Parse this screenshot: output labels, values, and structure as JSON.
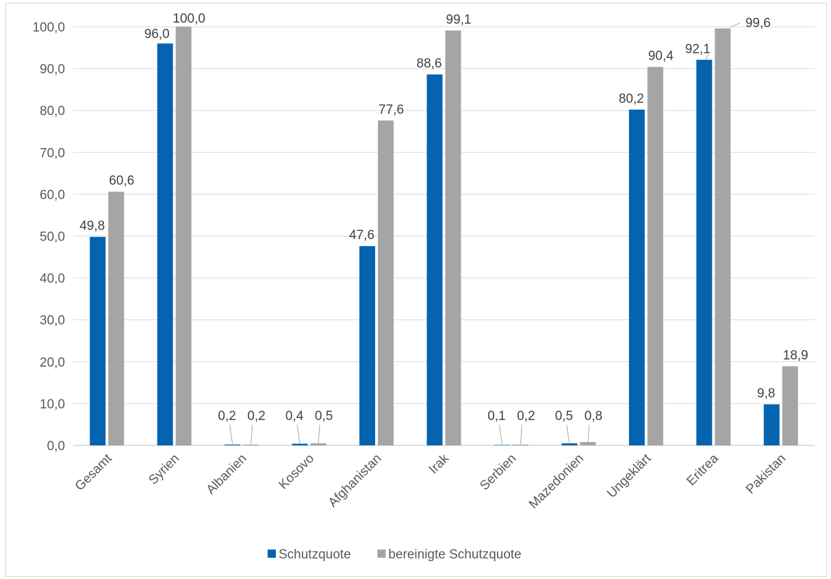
{
  "chart_data": {
    "type": "bar",
    "categories": [
      "Gesamt",
      "Syrien",
      "Albanien",
      "Kosovo",
      "Afghanistan",
      "Irak",
      "Serbien",
      "Mazedonien",
      "Ungeklärt",
      "Eritrea",
      "Pakistan"
    ],
    "series": [
      {
        "name": "Schutzquote",
        "color": "#0563b0",
        "values": [
          49.8,
          96.0,
          0.2,
          0.4,
          47.6,
          88.6,
          0.1,
          0.5,
          80.2,
          92.1,
          9.8
        ],
        "labels": [
          "49,8",
          "96,0",
          "0,2",
          "0,4",
          "47,6",
          "88,6",
          "0,1",
          "0,5",
          "80,2",
          "92,1",
          "9,8"
        ]
      },
      {
        "name": "bereinigte Schutzquote",
        "color": "#a5a5a5",
        "values": [
          60.6,
          100.0,
          0.2,
          0.5,
          77.6,
          99.1,
          0.2,
          0.8,
          90.4,
          99.6,
          18.9
        ],
        "labels": [
          "60,6",
          "100,0",
          "0,2",
          "0,5",
          "77,6",
          "99,1",
          "0,2",
          "0,8",
          "90,4",
          "99,6",
          "18,9"
        ]
      }
    ],
    "y_ticks": [
      "0,0",
      "10,0",
      "20,0",
      "30,0",
      "40,0",
      "50,0",
      "60,0",
      "70,0",
      "80,0",
      "90,0",
      "100,0"
    ],
    "ylim": [
      0,
      100
    ],
    "grid": true,
    "legend": "bottom-center"
  }
}
